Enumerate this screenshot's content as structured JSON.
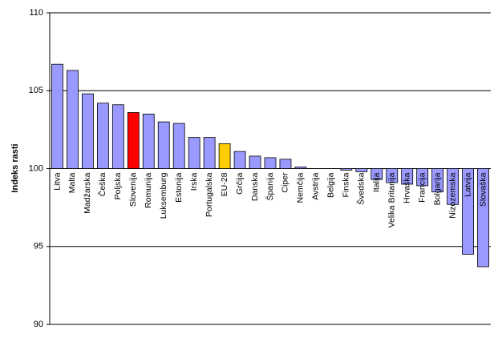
{
  "chart_data": {
    "type": "bar",
    "y_label": "Indeks rasti",
    "categories": [
      "Litva",
      "Malta",
      "Madžarska",
      "Češka",
      "Poljska",
      "Slovenija",
      "Romunija",
      "Luksemburg",
      "Estonija",
      "Irska",
      "Portugalska",
      "EU-28",
      "Grčija",
      "Danska",
      "Španija",
      "Ciper",
      "Nemčija",
      "Avstrija",
      "Belgija",
      "Finska",
      "Švedska",
      "Italija",
      "Velika Britanija",
      "Hrvaška",
      "Francija",
      "Bolgarija",
      "Nizozemska",
      "Latvija",
      "Slovaška"
    ],
    "values": [
      106.7,
      106.3,
      104.8,
      104.2,
      104.1,
      103.6,
      103.5,
      103.0,
      102.9,
      102.0,
      102.0,
      101.6,
      101.1,
      100.8,
      100.7,
      100.6,
      100.1,
      100.0,
      100.0,
      99.9,
      99.8,
      99.3,
      99.1,
      99.0,
      98.9,
      98.5,
      97.7,
      94.5,
      93.7
    ],
    "color": "#9999ff",
    "colors": [
      "#9999ff",
      "#9999ff",
      "#9999ff",
      "#9999ff",
      "#9999ff",
      "#ff0000",
      "#9999ff",
      "#9999ff",
      "#9999ff",
      "#9999ff",
      "#9999ff",
      "#ffcc00",
      "#9999ff",
      "#9999ff",
      "#9999ff",
      "#9999ff",
      "#9999ff",
      "#9999ff",
      "#9999ff",
      "#9999ff",
      "#9999ff",
      "#9999ff",
      "#9999ff",
      "#9999ff",
      "#9999ff",
      "#9999ff",
      "#9999ff",
      "#9999ff",
      "#9999ff"
    ],
    "base": 100,
    "ylim": [
      90,
      110
    ],
    "yticks": [
      90,
      95,
      100,
      105,
      110
    ],
    "grid": true
  }
}
